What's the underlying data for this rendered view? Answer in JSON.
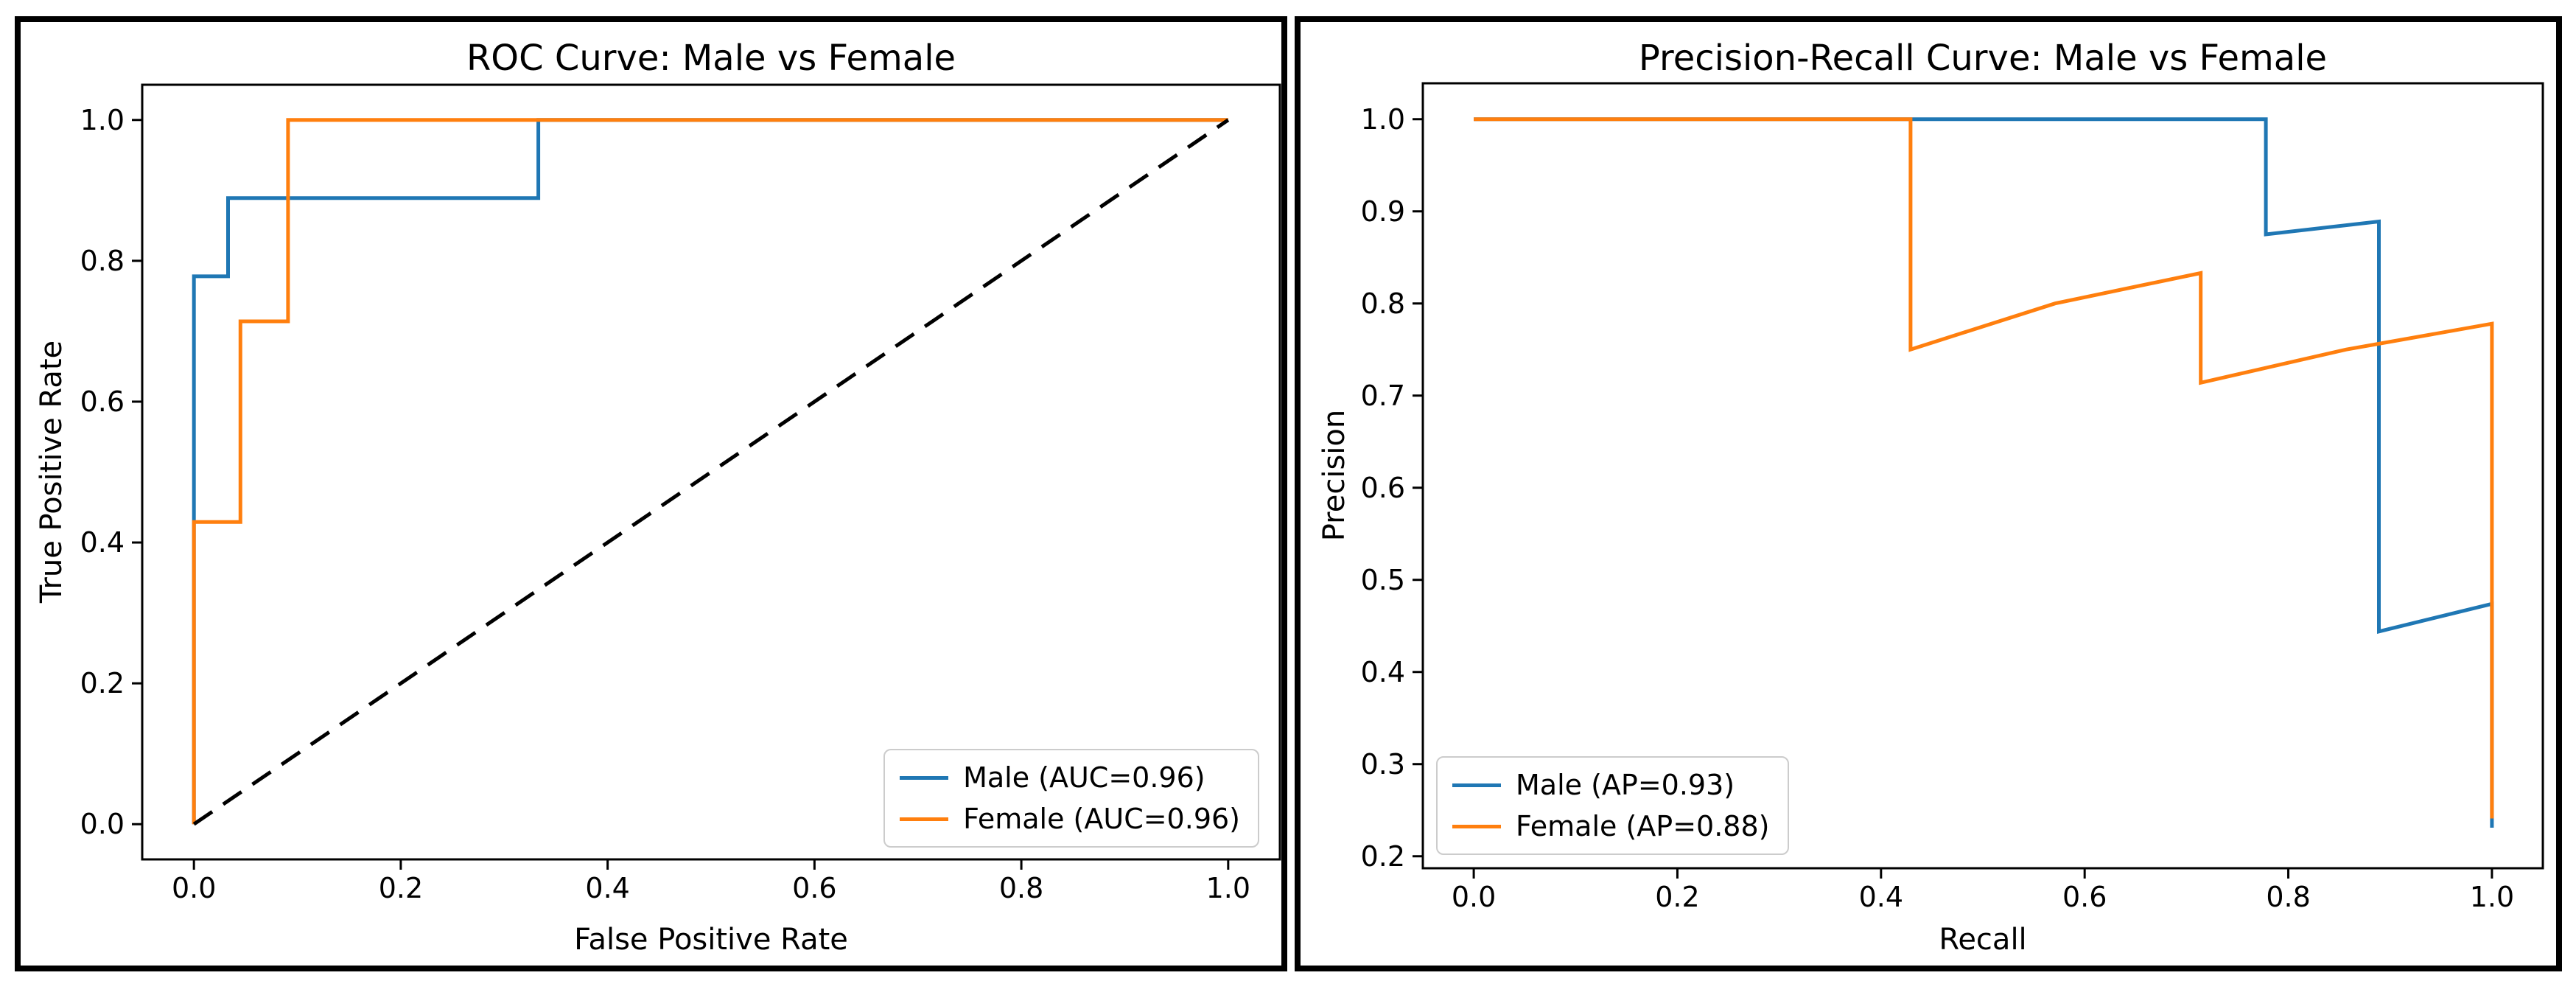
{
  "page": {
    "background_color": "#ffffff",
    "panel_border_color": "#000000",
    "text_color": "#000000",
    "legend_border_color": "#cccccc"
  },
  "chart_data": [
    {
      "type": "line",
      "title": "ROC Curve: Male vs Female",
      "xlabel": "False Positive Rate",
      "ylabel": "True Positive Rate",
      "xlim": [
        -0.05,
        1.05
      ],
      "ylim": [
        -0.05,
        1.05
      ],
      "xticks": [
        0.0,
        0.2,
        0.4,
        0.6,
        0.8,
        1.0
      ],
      "yticks": [
        0.0,
        0.2,
        0.4,
        0.6,
        0.8,
        1.0
      ],
      "grid": false,
      "legend_position": "lower right",
      "series": [
        {
          "name": "Male (AUC=0.96)",
          "metric": "AUC",
          "value": 0.96,
          "color": "#1f77b4",
          "x": [
            0.0,
            0.0,
            0.033,
            0.033,
            0.333,
            0.333,
            1.0
          ],
          "y": [
            0.0,
            0.778,
            0.778,
            0.889,
            0.889,
            1.0,
            1.0
          ]
        },
        {
          "name": "Female (AUC=0.96)",
          "metric": "AUC",
          "value": 0.96,
          "color": "#ff7f0e",
          "x": [
            0.0,
            0.0,
            0.045,
            0.045,
            0.091,
            0.091,
            1.0
          ],
          "y": [
            0.0,
            0.429,
            0.429,
            0.714,
            0.714,
            1.0,
            1.0
          ]
        }
      ],
      "reference_line": {
        "name": "chance-diagonal",
        "color": "#000000",
        "style": "dashed",
        "x": [
          0.0,
          1.0
        ],
        "y": [
          0.0,
          1.0
        ]
      }
    },
    {
      "type": "line",
      "title": "Precision-Recall Curve: Male vs Female",
      "xlabel": "Recall",
      "ylabel": "Precision",
      "xlim": [
        -0.05,
        1.05
      ],
      "ylim": [
        0.187,
        1.039
      ],
      "xticks": [
        0.0,
        0.2,
        0.4,
        0.6,
        0.8,
        1.0
      ],
      "yticks": [
        0.2,
        0.3,
        0.4,
        0.5,
        0.6,
        0.7,
        0.8,
        0.9,
        1.0
      ],
      "grid": false,
      "legend_position": "lower left",
      "series": [
        {
          "name": "Male (AP=0.93)",
          "metric": "AP",
          "value": 0.93,
          "color": "#1f77b4",
          "x": [
            0.0,
            0.778,
            0.778,
            0.889,
            0.889,
            1.0,
            1.0
          ],
          "y": [
            1.0,
            1.0,
            0.875,
            0.889,
            0.444,
            0.474,
            0.231
          ]
        },
        {
          "name": "Female (AP=0.88)",
          "metric": "AP",
          "value": 0.88,
          "color": "#ff7f0e",
          "x": [
            0.0,
            0.429,
            0.429,
            0.571,
            0.714,
            0.714,
            0.857,
            1.0,
            1.0
          ],
          "y": [
            1.0,
            1.0,
            0.75,
            0.8,
            0.833,
            0.714,
            0.75,
            0.778,
            0.241
          ]
        }
      ]
    }
  ]
}
